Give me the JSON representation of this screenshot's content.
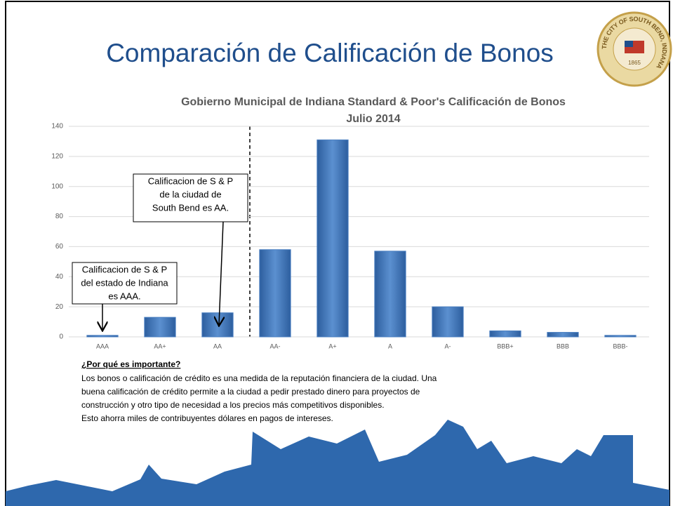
{
  "title": "Comparación de Calificación de Bonos",
  "seal": {
    "text": "THE CITY OF SOUTH BEND, INDIANA",
    "year": "1865"
  },
  "chart_data": {
    "type": "bar",
    "title": [
      "Gobierno Municipal de Indiana Standard & Poor's Calificación de Bonos",
      "Julio 2014"
    ],
    "categories": [
      "AAA",
      "AA+",
      "AA",
      "AA-",
      "A+",
      "A",
      "A-",
      "BBB+",
      "BBB",
      "BBB-"
    ],
    "values": [
      1,
      13,
      16,
      58,
      131,
      57,
      20,
      4,
      3,
      1
    ],
    "color": "#4a7fc1",
    "ylim": [
      0,
      140
    ],
    "yticks": [
      0,
      20,
      40,
      60,
      80,
      100,
      120,
      140
    ],
    "grid": true,
    "annotations": [
      {
        "lines": [
          "Calificacion de S & P",
          "de la ciudad de",
          "South Bend es AA."
        ]
      },
      {
        "lines": [
          "Calificacion de S & P",
          "del estado de Indiana",
          "es AAA."
        ]
      }
    ]
  },
  "explanation": {
    "heading": "¿Por qué es importante?",
    "lines": [
      "Los bonos o calificación de crédito es una medida de la reputación financiera de la ciudad. Una",
      "buena calificación de crédito permite a la ciudad a pedir prestado dinero para proyectos de",
      "construcción y otro tipo de necesidad a los precios más competitivos disponibles.",
      "Esto ahorra miles de contribuyentes dólares en pagos de intereses."
    ]
  }
}
